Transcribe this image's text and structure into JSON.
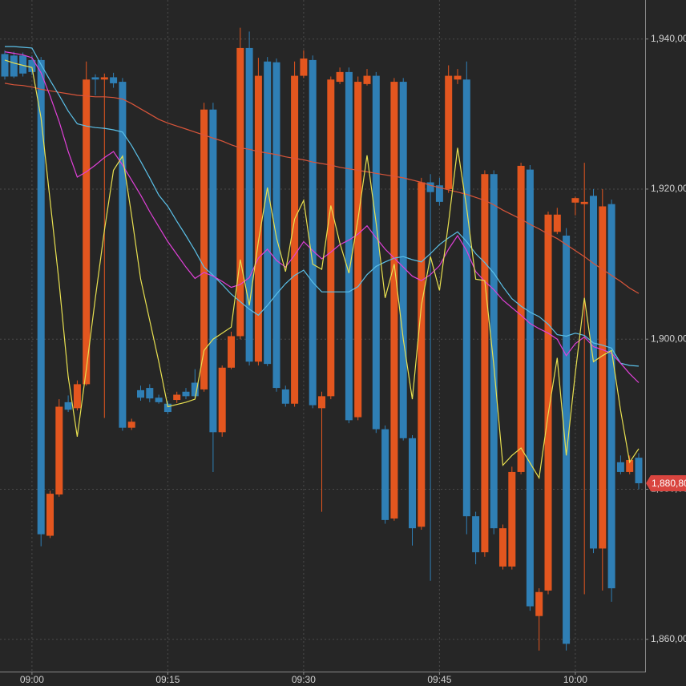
{
  "chart_data": {
    "type": "candlestick",
    "categories": [
      null,
      null,
      null,
      "09:00",
      null,
      null,
      null,
      null,
      null,
      null,
      null,
      null,
      null,
      null,
      null,
      null,
      null,
      null,
      "09:15",
      null,
      null,
      null,
      null,
      null,
      null,
      null,
      null,
      null,
      null,
      null,
      null,
      null,
      null,
      "09:30",
      null,
      null,
      null,
      null,
      null,
      null,
      null,
      null,
      null,
      null,
      null,
      null,
      null,
      null,
      "09:45",
      null,
      null,
      null,
      null,
      null,
      null,
      null,
      null,
      null,
      null,
      null,
      null,
      null,
      null,
      "10:00",
      null,
      null,
      null,
      null,
      null,
      null,
      null
    ],
    "open": [
      1938.0,
      1937.8,
      1937.8,
      1937.2,
      1937.2,
      1873.8,
      1879.3,
      1891.6,
      1890.8,
      1894.0,
      1934.9,
      1934.6,
      1934.9,
      1934.3,
      1888.2,
      1893.2,
      1893.5,
      1892.2,
      1891.4,
      1891.9,
      1893.0,
      1894.2,
      1893.3,
      1930.6,
      1887.6,
      1896.2,
      1900.4,
      1938.8,
      1897.0,
      1937.0,
      1936.9,
      1893.3,
      1891.4,
      1935.1,
      1937.2,
      1890.8,
      1892.4,
      1934.3,
      1935.6,
      1889.6,
      1934.0,
      1935.1,
      1888.0,
      1876.1,
      1934.3,
      1886.8,
      1875.0,
      1920.9,
      1920.5,
      1920.0,
      1934.6,
      1934.6,
      1876.4,
      1871.6,
      1922.0,
      1869.7,
      1869.7,
      1882.3,
      1922.6,
      1863.1,
      1866.5,
      1914.3,
      1913.8,
      1918.2,
      1918.0,
      1919.1,
      1872.1,
      1918.0,
      1883.6,
      1882.3,
      1884.2
    ],
    "high": [
      1938.5,
      1938.3,
      1938.2,
      1937.8,
      1937.6,
      1879.8,
      1892.0,
      1892.5,
      1894.5,
      1937.0,
      1935.3,
      1935.4,
      1935.5,
      1934.8,
      1889.4,
      1893.8,
      1894.0,
      1892.6,
      1891.8,
      1893.0,
      1893.5,
      1896.0,
      1931.5,
      1931.5,
      1896.5,
      1901.0,
      1941.5,
      1941.0,
      1937.5,
      1937.6,
      1937.4,
      1893.8,
      1937.0,
      1938.5,
      1937.8,
      1893.0,
      1935.0,
      1936.2,
      1936.2,
      1935.0,
      1936.0,
      1935.6,
      1888.5,
      1934.8,
      1934.8,
      1887.2,
      1921.5,
      1922.0,
      1921.5,
      1936.5,
      1936.0,
      1937.0,
      1877.0,
      1922.5,
      1922.5,
      1875.3,
      1883.0,
      1923.5,
      1923.2,
      1866.8,
      1917.0,
      1917.5,
      1914.8,
      1919.0,
      1923.5,
      1920.0,
      1920.0,
      1918.6,
      1884.5,
      1884.5,
      1884.8
    ],
    "low": [
      1934.6,
      1934.8,
      1935.0,
      1935.2,
      1872.4,
      1873.5,
      1879.0,
      1890.3,
      1890.5,
      1893.8,
      1932.5,
      1889.5,
      1933.5,
      1887.8,
      1887.9,
      1891.8,
      1891.6,
      1891.4,
      1890.0,
      1891.5,
      1892.0,
      1892.0,
      1893.0,
      1882.3,
      1887.0,
      1896.0,
      1900.0,
      1896.5,
      1896.5,
      1896.4,
      1893.0,
      1891.0,
      1891.0,
      1934.8,
      1890.8,
      1877.0,
      1892.0,
      1934.0,
      1888.8,
      1889.2,
      1933.8,
      1887.5,
      1875.4,
      1875.8,
      1886.5,
      1872.5,
      1874.6,
      1867.8,
      1917.8,
      1919.5,
      1934.0,
      1874.0,
      1870.0,
      1871.0,
      1874.0,
      1869.3,
      1869.3,
      1882.0,
      1863.8,
      1858.5,
      1866.0,
      1914.0,
      1858.5,
      1916.5,
      1866.0,
      1871.5,
      1866.5,
      1865.0,
      1882.0,
      1882.0,
      1880.0
    ],
    "close": [
      1935.0,
      1935.0,
      1935.4,
      1935.6,
      1874.0,
      1879.4,
      1891.0,
      1890.6,
      1894.0,
      1934.6,
      1934.6,
      1934.9,
      1934.1,
      1888.2,
      1889.0,
      1892.2,
      1892.1,
      1891.6,
      1890.3,
      1892.6,
      1892.4,
      1892.4,
      1930.6,
      1887.6,
      1896.2,
      1900.4,
      1938.8,
      1897.0,
      1935.1,
      1896.7,
      1893.5,
      1891.4,
      1935.1,
      1937.4,
      1891.2,
      1892.4,
      1934.6,
      1935.6,
      1889.2,
      1934.3,
      1935.1,
      1888.0,
      1875.9,
      1934.3,
      1886.8,
      1874.8,
      1920.9,
      1919.6,
      1918.3,
      1935.1,
      1935.1,
      1876.4,
      1871.6,
      1922.0,
      1874.8,
      1874.8,
      1882.3,
      1923.1,
      1864.4,
      1866.3,
      1916.6,
      1916.6,
      1859.4,
      1918.8,
      1918.3,
      1872.1,
      1917.7,
      1866.8,
      1882.3,
      1883.9,
      1880.8
    ],
    "up_color": "#e3561f",
    "down_color": "#2f7fb5",
    "overlays": [
      {
        "color": "#d9553a",
        "values": [
          1934.1,
          1933.9,
          1933.8,
          1933.6,
          1933.3,
          1933.1,
          1932.9,
          1932.7,
          1932.5,
          1932.4,
          1932.3,
          1932.3,
          1932.2,
          1932.0,
          1931.4,
          1930.7,
          1930.0,
          1929.3,
          1928.8,
          1928.4,
          1928.0,
          1927.6,
          1927.2,
          1926.8,
          1926.4,
          1925.9,
          1925.5,
          1925.3,
          1925.0,
          1924.8,
          1924.6,
          1924.3,
          1924.1,
          1923.9,
          1923.6,
          1923.4,
          1923.2,
          1922.9,
          1922.7,
          1922.5,
          1922.3,
          1922.1,
          1921.9,
          1921.7,
          1921.5,
          1921.2,
          1920.9,
          1920.5,
          1920.2,
          1919.9,
          1919.6,
          1919.3,
          1918.9,
          1918.5,
          1917.9,
          1917.2,
          1916.6,
          1916.0,
          1915.3,
          1914.7,
          1914.0,
          1913.4,
          1912.6,
          1911.8,
          1911.0,
          1910.1,
          1909.3,
          1908.5,
          1907.7,
          1906.8,
          1906.1
        ]
      },
      {
        "color": "#5bc0e8",
        "values": [
          1939.0,
          1939.0,
          1938.9,
          1938.8,
          1936.6,
          1934.5,
          1932.5,
          1930.4,
          1928.7,
          1928.4,
          1928.2,
          1928.1,
          1927.9,
          1927.6,
          1925.8,
          1923.7,
          1921.5,
          1919.2,
          1917.7,
          1915.7,
          1913.8,
          1911.8,
          1909.6,
          1908.5,
          1907.3,
          1906.0,
          1905.0,
          1904.0,
          1903.2,
          1904.5,
          1906.0,
          1907.4,
          1908.5,
          1909.2,
          1907.6,
          1906.3,
          1906.3,
          1906.3,
          1906.3,
          1907.0,
          1908.6,
          1909.7,
          1910.3,
          1910.8,
          1911.0,
          1910.6,
          1910.3,
          1911.4,
          1912.6,
          1913.5,
          1914.3,
          1913.0,
          1911.4,
          1910.2,
          1908.8,
          1907.0,
          1905.4,
          1904.4,
          1903.6,
          1903.0,
          1902.0,
          1900.6,
          1900.4,
          1900.8,
          1900.5,
          1899.5,
          1899.2,
          1898.8,
          1896.8,
          1896.5,
          1896.4
        ]
      },
      {
        "color": "#e040d8",
        "values": [
          1938.3,
          1938.1,
          1937.9,
          1937.5,
          1935.5,
          1932.4,
          1929.0,
          1925.0,
          1921.6,
          1922.3,
          1923.2,
          1924.2,
          1925.0,
          1923.2,
          1921.2,
          1919.2,
          1917.0,
          1915.0,
          1913.0,
          1911.3,
          1909.6,
          1908.1,
          1908.9,
          1908.4,
          1907.7,
          1906.9,
          1907.3,
          1908.2,
          1910.8,
          1912.0,
          1910.5,
          1909.6,
          1911.2,
          1913.0,
          1911.8,
          1910.7,
          1911.6,
          1912.6,
          1913.2,
          1914.0,
          1915.1,
          1913.5,
          1912.0,
          1910.8,
          1909.6,
          1908.4,
          1907.8,
          1908.6,
          1909.8,
          1912.0,
          1913.8,
          1911.8,
          1909.0,
          1907.7,
          1906.6,
          1905.2,
          1904.2,
          1903.2,
          1902.1,
          1901.4,
          1900.8,
          1900.0,
          1897.8,
          1899.4,
          1900.3,
          1899.0,
          1898.6,
          1898.1,
          1896.8,
          1895.4,
          1894.2
        ]
      },
      {
        "color": "#e8e050",
        "values": [
          1937.2,
          1936.8,
          1936.5,
          1936.2,
          1929.5,
          1918.5,
          1907.5,
          1895.0,
          1887.0,
          1896.0,
          1905.5,
          1914.5,
          1922.5,
          1924.4,
          1916.5,
          1908.0,
          1902.5,
          1897.0,
          1891.0,
          1891.3,
          1891.6,
          1892.0,
          1898.5,
          1900.0,
          1900.8,
          1901.6,
          1910.6,
          1904.5,
          1913.0,
          1920.2,
          1913.5,
          1909.0,
          1916.0,
          1918.5,
          1910.0,
          1909.3,
          1917.8,
          1912.8,
          1908.8,
          1916.0,
          1924.5,
          1915.5,
          1905.5,
          1910.0,
          1900.0,
          1892.0,
          1904.5,
          1911.0,
          1906.5,
          1915.5,
          1925.5,
          1917.5,
          1908.0,
          1907.8,
          1896.5,
          1883.2,
          1884.5,
          1885.5,
          1883.5,
          1881.5,
          1890.0,
          1897.5,
          1884.5,
          1895.5,
          1905.5,
          1897.0,
          1897.8,
          1898.5,
          1890.5,
          1883.6,
          1885.4
        ]
      }
    ],
    "ylim": [
      1855.7,
      1945.2
    ],
    "yticks": [
      {
        "value": 1860,
        "label": "1,860,00"
      },
      {
        "value": 1880,
        "label": "1,880,00"
      },
      {
        "value": 1900,
        "label": "1,900,00"
      },
      {
        "value": 1920,
        "label": "1,920,00"
      },
      {
        "value": 1940,
        "label": "1,940,00"
      }
    ],
    "grid": true,
    "last_price": {
      "value": 1880.8,
      "label": "1,880,80"
    },
    "last_price_color": "#d9453f"
  }
}
